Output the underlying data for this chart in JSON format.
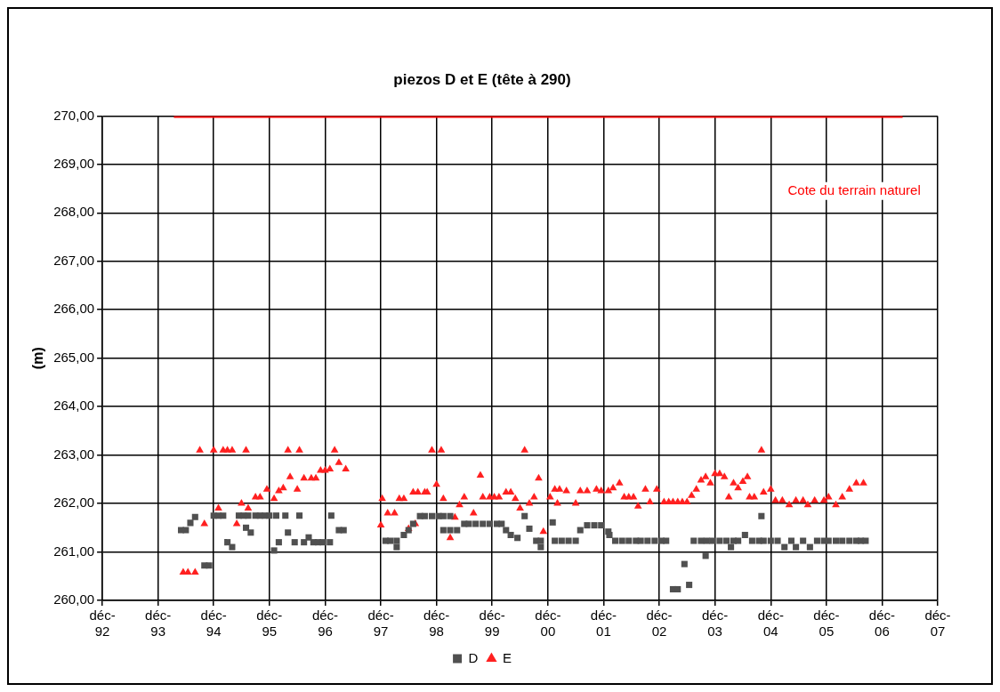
{
  "chart_data": {
    "type": "scatter",
    "title": "piezos D et E (tête à 290)",
    "ylabel": "(m)",
    "xlim": [
      "1992-12-01",
      "2007-12-01"
    ],
    "xticks": [
      {
        "value": "1992-12-01",
        "label": "déc-92"
      },
      {
        "value": "1993-12-01",
        "label": "déc-93"
      },
      {
        "value": "1994-12-01",
        "label": "déc-94"
      },
      {
        "value": "1995-12-01",
        "label": "déc-95"
      },
      {
        "value": "1996-12-01",
        "label": "déc-96"
      },
      {
        "value": "1997-12-01",
        "label": "déc-97"
      },
      {
        "value": "1998-12-01",
        "label": "déc-98"
      },
      {
        "value": "1999-12-01",
        "label": "déc-99"
      },
      {
        "value": "2000-12-01",
        "label": "déc-00"
      },
      {
        "value": "2001-12-01",
        "label": "déc-01"
      },
      {
        "value": "2002-12-01",
        "label": "déc-02"
      },
      {
        "value": "2003-12-01",
        "label": "déc-03"
      },
      {
        "value": "2004-12-01",
        "label": "déc-04"
      },
      {
        "value": "2005-12-01",
        "label": "déc-05"
      },
      {
        "value": "2006-12-01",
        "label": "déc-06"
      },
      {
        "value": "2007-12-01",
        "label": "déc-07"
      }
    ],
    "ylim": [
      260,
      270
    ],
    "yticks": [
      {
        "value": 260,
        "label": "260,00"
      },
      {
        "value": 261,
        "label": "261,00"
      },
      {
        "value": 262,
        "label": "262,00"
      },
      {
        "value": 263,
        "label": "263,00"
      },
      {
        "value": 264,
        "label": "264,00"
      },
      {
        "value": 265,
        "label": "265,00"
      },
      {
        "value": 266,
        "label": "266,00"
      },
      {
        "value": 267,
        "label": "267,00"
      },
      {
        "value": 268,
        "label": "268,00"
      },
      {
        "value": 269,
        "label": "269,00"
      },
      {
        "value": 270,
        "label": "270,00"
      }
    ],
    "grid": true,
    "legend": "bottom",
    "annotations": [
      "Cote du terrain naturel"
    ],
    "series": [
      {
        "name": "D",
        "marker": "square",
        "color": "#505050",
        "x": [
          "1994-05-01",
          "1994-06-01",
          "1994-07-01",
          "1994-08-01",
          "1994-10-01",
          "1994-11-01",
          "1994-12-01",
          "1995-01-01",
          "1995-02-01",
          "1995-03-01",
          "1995-04-01",
          "1995-05-15",
          "1995-06-15",
          "1995-07-01",
          "1995-07-15",
          "1995-08-01",
          "1995-09-01",
          "1995-10-01",
          "1995-11-01",
          "1995-12-01",
          "1996-01-01",
          "1996-01-15",
          "1996-02-01",
          "1996-03-15",
          "1996-04-01",
          "1996-05-15",
          "1996-06-15",
          "1996-07-15",
          "1996-08-15",
          "1996-09-15",
          "1996-10-15",
          "1996-11-15",
          "1997-01-01",
          "1997-01-10",
          "1997-03-01",
          "1997-04-01",
          "1998-01-01",
          "1998-02-01",
          "1998-03-15",
          "1998-03-15",
          "1998-05-01",
          "1998-06-01",
          "1998-07-01",
          "1998-08-15",
          "1998-09-15",
          "1998-11-01",
          "1998-12-15",
          "1999-01-15",
          "1999-03-01",
          "1999-01-15",
          "1999-03-01",
          "1999-04-15",
          "1999-06-01",
          "1999-07-01",
          "1999-08-15",
          "1999-10-01",
          "1999-11-15",
          "2000-01-01",
          "2000-02-01",
          "2000-03-01",
          "2000-04-01",
          "2000-05-15",
          "2000-07-01",
          "2000-08-01",
          "2000-09-15",
          "2000-10-15",
          "2000-10-15",
          "2001-01-01",
          "2001-01-15",
          "2001-03-01",
          "2001-04-15",
          "2001-06-01",
          "2001-07-01",
          "2001-08-15",
          "2001-10-01",
          "2001-11-15",
          "2002-01-01",
          "2002-01-08",
          "2002-02-15",
          "2002-04-01",
          "2002-05-15",
          "2002-07-01",
          "2002-08-01",
          "2002-09-15",
          "2002-11-01",
          "2002-12-15",
          "2003-01-15",
          "2003-03-01",
          "2003-04-01",
          "2003-05-15",
          "2003-06-15",
          "2003-07-15",
          "2003-09-01",
          "2003-10-01",
          "2003-10-08",
          "2003-11-15",
          "2004-01-01",
          "2004-02-15",
          "2004-03-15",
          "2004-04-01",
          "2004-05-01",
          "2004-06-15",
          "2004-08-01",
          "2004-10-01",
          "2004-09-15",
          "2004-10-15",
          "2004-12-01",
          "2005-01-15",
          "2005-03-01",
          "2005-04-15",
          "2005-05-15",
          "2005-07-01",
          "2005-08-15",
          "2005-10-01",
          "2005-11-15",
          "2005-12-15",
          "2006-02-01",
          "2006-03-15",
          "2006-05-01",
          "2006-06-15",
          "2006-07-15",
          "2006-08-15"
        ],
        "values": [
          261.45,
          261.45,
          261.6,
          261.72,
          260.72,
          260.72,
          261.75,
          261.75,
          261.75,
          261.2,
          261.1,
          261.75,
          261.75,
          261.5,
          261.75,
          261.4,
          261.75,
          261.75,
          261.75,
          261.75,
          261.03,
          261.75,
          261.2,
          261.75,
          261.4,
          261.2,
          261.75,
          261.2,
          261.3,
          261.2,
          261.2,
          261.2,
          261.2,
          261.75,
          261.45,
          261.45,
          261.23,
          261.23,
          261.23,
          261.1,
          261.35,
          261.45,
          261.58,
          261.74,
          261.74,
          261.74,
          261.74,
          261.74,
          261.74,
          261.45,
          261.45,
          261.45,
          261.58,
          261.58,
          261.58,
          261.58,
          261.58,
          261.58,
          261.58,
          261.45,
          261.35,
          261.29,
          261.74,
          261.48,
          261.23,
          261.23,
          261.1,
          261.61,
          261.23,
          261.23,
          261.23,
          261.23,
          261.45,
          261.55,
          261.55,
          261.55,
          261.42,
          261.35,
          261.23,
          261.23,
          261.23,
          261.23,
          261.23,
          261.23,
          261.23,
          261.23,
          261.23,
          260.23,
          260.23,
          260.75,
          260.32,
          261.23,
          261.23,
          260.92,
          261.23,
          261.23,
          261.23,
          261.23,
          261.1,
          261.23,
          261.23,
          261.35,
          261.23,
          261.74,
          261.23,
          261.23,
          261.23,
          261.23,
          261.1,
          261.23,
          261.1,
          261.23,
          261.1,
          261.23,
          261.23,
          261.23,
          261.23,
          261.23,
          261.23,
          261.23,
          261.23,
          261.23
        ]
      },
      {
        "name": "E",
        "marker": "triangle",
        "color": "#ff2020",
        "x": [
          "1994-05-15",
          "1994-06-15",
          "1994-08-01",
          "1994-09-01",
          "1994-10-01",
          "1994-12-01",
          "1995-01-01",
          "1995-02-01",
          "1995-03-01",
          "1995-04-01",
          "1995-05-01",
          "1995-06-01",
          "1995-07-01",
          "1995-07-15",
          "1995-09-01",
          "1995-10-01",
          "1995-11-15",
          "1996-01-01",
          "1996-02-01",
          "1996-03-01",
          "1996-04-01",
          "1996-04-15",
          "1996-06-01",
          "1996-06-15",
          "1996-07-15",
          "1996-09-01",
          "1996-10-01",
          "1996-11-01",
          "1996-12-01",
          "1997-01-01",
          "1997-02-01",
          "1997-03-01",
          "1997-04-15",
          "1997-12-01",
          "1997-12-10",
          "1998-01-15",
          "1998-03-01",
          "1998-04-01",
          "1998-05-01",
          "1998-06-01",
          "1998-07-01",
          "1998-07-15",
          "1998-08-01",
          "1998-09-15",
          "1998-10-01",
          "1998-11-01",
          "1998-12-01",
          "1999-01-01",
          "1999-01-15",
          "1999-03-01",
          "1999-04-01",
          "1999-05-01",
          "1999-06-01",
          "1999-08-01",
          "1999-09-15",
          "1999-10-01",
          "1999-11-15",
          "1999-12-15",
          "2000-01-15",
          "2000-03-01",
          "2000-04-01",
          "2000-05-01",
          "2000-06-01",
          "2000-07-01",
          "2000-08-01",
          "2000-09-01",
          "2000-10-01",
          "2000-11-01",
          "2000-12-15",
          "2001-01-15",
          "2001-02-01",
          "2001-02-15",
          "2001-04-01",
          "2001-06-01",
          "2001-07-01",
          "2001-08-15",
          "2001-10-15",
          "2001-11-15",
          "2002-01-01",
          "2002-02-01",
          "2002-03-15",
          "2002-04-15",
          "2002-05-15",
          "2002-06-15",
          "2002-07-15",
          "2002-09-01",
          "2002-10-01",
          "2002-11-15",
          "2003-01-01",
          "2003-02-01",
          "2003-03-01",
          "2003-04-01",
          "2003-05-01",
          "2003-06-01",
          "2003-07-01",
          "2003-08-01",
          "2003-09-01",
          "2003-10-01",
          "2003-11-01",
          "2003-12-01",
          "2004-01-01",
          "2004-02-01",
          "2004-03-01",
          "2004-04-01",
          "2004-05-01",
          "2004-06-01",
          "2004-07-01",
          "2004-07-15",
          "2004-08-15",
          "2004-10-01",
          "2004-10-15",
          "2004-12-01",
          "2005-01-01",
          "2005-02-15",
          "2005-04-01",
          "2005-05-15",
          "2005-07-01",
          "2005-08-01",
          "2005-09-15",
          "2005-11-15",
          "2005-12-15",
          "2006-02-01",
          "2006-03-15",
          "2006-05-01",
          "2006-06-15",
          "2006-08-01"
        ],
        "values": [
          260.58,
          260.58,
          260.58,
          263.1,
          261.58,
          263.1,
          261.9,
          263.1,
          263.1,
          263.1,
          261.58,
          262.0,
          263.1,
          261.9,
          262.13,
          262.13,
          262.29,
          262.1,
          262.26,
          262.32,
          263.1,
          262.55,
          262.29,
          263.1,
          262.52,
          262.52,
          262.52,
          262.68,
          262.68,
          262.71,
          263.1,
          262.84,
          262.71,
          261.55,
          262.1,
          261.8,
          261.8,
          262.1,
          262.1,
          261.48,
          262.23,
          261.58,
          262.23,
          262.23,
          262.23,
          263.1,
          262.39,
          263.1,
          262.1,
          261.29,
          261.71,
          261.97,
          262.13,
          261.8,
          262.58,
          262.13,
          262.13,
          262.13,
          262.13,
          262.23,
          262.23,
          262.1,
          261.9,
          263.1,
          262.0,
          262.13,
          262.52,
          261.42,
          262.13,
          262.29,
          262.0,
          262.29,
          262.26,
          262.0,
          262.26,
          262.26,
          262.29,
          262.26,
          262.26,
          262.32,
          262.42,
          262.13,
          262.13,
          262.13,
          261.94,
          262.29,
          262.03,
          262.29,
          262.03,
          262.03,
          262.03,
          262.03,
          262.03,
          262.03,
          262.16,
          262.29,
          262.48,
          262.55,
          262.42,
          262.61,
          262.61,
          262.55,
          262.13,
          262.42,
          262.32,
          262.45,
          262.55,
          262.13,
          262.13,
          263.1,
          262.23,
          262.29,
          262.06,
          262.06,
          261.97,
          262.06,
          262.06,
          261.97,
          262.06,
          262.06,
          262.13,
          261.97,
          262.13,
          262.29,
          262.42,
          262.42
        ]
      },
      {
        "type": "line",
        "marker": "none",
        "color": "#ff0000",
        "x": [
          "1994-03-15",
          "2007-04-15"
        ],
        "values": [
          270,
          270
        ]
      }
    ]
  }
}
